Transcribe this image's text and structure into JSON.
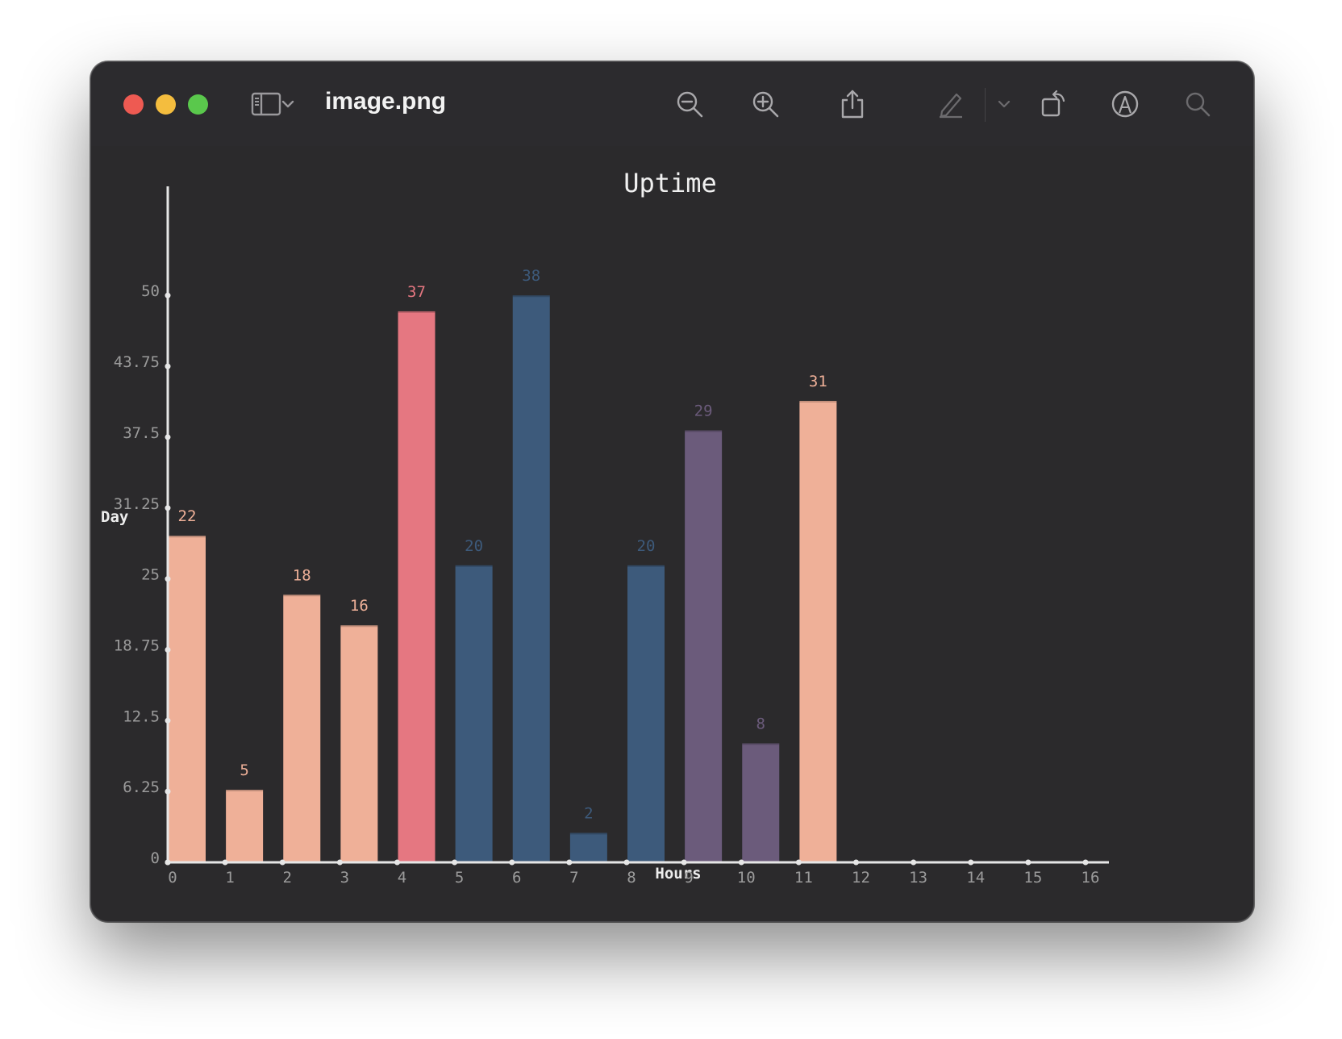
{
  "window": {
    "file_name": "image.png",
    "icons": [
      "sidebar-icon",
      "chevron-down-icon",
      "zoom-out-icon",
      "zoom-in-icon",
      "share-icon",
      "markup-pen-icon",
      "chevron-down-icon",
      "rotate-icon",
      "annotate-icon",
      "search-icon"
    ]
  },
  "chart_data": {
    "type": "bar",
    "title": "Uptime",
    "xlabel": "Hours",
    "ylabel": "Day",
    "x_ticks": [
      "0",
      "1",
      "2",
      "3",
      "4",
      "5",
      "6",
      "7",
      "8",
      "9",
      "10",
      "11",
      "12",
      "13",
      "14",
      "15",
      "16"
    ],
    "y_ticks": [
      "0",
      "6.25",
      "12.5",
      "18.75",
      "25",
      "31.25",
      "37.5",
      "43.75",
      "50"
    ],
    "ylim": [
      0,
      54.5
    ],
    "bars": [
      {
        "x": 0,
        "value": 28.8,
        "label": "22",
        "color": "#efb098",
        "label_color": "#efb098"
      },
      {
        "x": 1,
        "value": 6.4,
        "label": "5",
        "color": "#efb098",
        "label_color": "#efb098"
      },
      {
        "x": 2,
        "value": 23.6,
        "label": "18",
        "color": "#efb098",
        "label_color": "#efb098"
      },
      {
        "x": 3,
        "value": 20.9,
        "label": "16",
        "color": "#efb098",
        "label_color": "#efb098"
      },
      {
        "x": 4,
        "value": 48.6,
        "label": "37",
        "color": "#e57781",
        "label_color": "#e57781"
      },
      {
        "x": 5,
        "value": 26.2,
        "label": "20",
        "color": "#3d5a7b",
        "label_color": "#3d5a7b"
      },
      {
        "x": 6,
        "value": 50.0,
        "label": "38",
        "color": "#3d5a7b",
        "label_color": "#3d5a7b"
      },
      {
        "x": 7,
        "value": 2.6,
        "label": "2",
        "color": "#3d5a7b",
        "label_color": "#3d5a7b"
      },
      {
        "x": 8,
        "value": 26.2,
        "label": "20",
        "color": "#3d5a7b",
        "label_color": "#3d5a7b"
      },
      {
        "x": 9,
        "value": 38.1,
        "label": "29",
        "color": "#6b5b7b",
        "label_color": "#6b5b7b"
      },
      {
        "x": 10,
        "value": 10.5,
        "label": "8",
        "color": "#6b5b7b",
        "label_color": "#6b5b7b"
      },
      {
        "x": 11,
        "value": 40.7,
        "label": "31",
        "color": "#efb098",
        "label_color": "#efb098"
      }
    ],
    "grid": false,
    "colors": {
      "axis": "#e6e6e6",
      "tick": "#9b9b9b",
      "title": "#f0f0f0"
    }
  }
}
